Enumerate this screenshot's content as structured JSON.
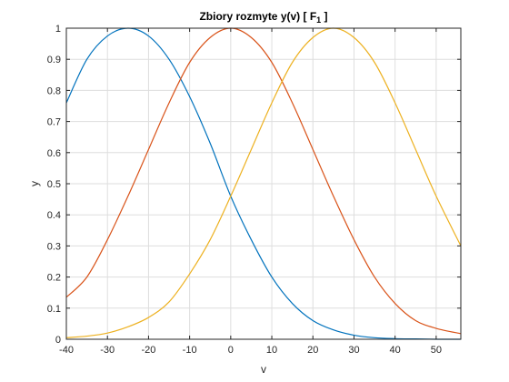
{
  "chart_data": {
    "type": "line",
    "title_main": "Zbiory  rozmyte  y(v)  [ F",
    "title_sub": "1",
    "title_end": " ]",
    "xlabel": "v",
    "ylabel": "y",
    "xlim": [
      -40,
      56
    ],
    "ylim": [
      0,
      1
    ],
    "x_ticks": [
      -40,
      -30,
      -20,
      -10,
      0,
      10,
      20,
      30,
      40,
      50
    ],
    "y_ticks": [
      0,
      0.1,
      0.2,
      0.3,
      0.4,
      0.5,
      0.6,
      0.7,
      0.8,
      0.9,
      1
    ],
    "x_tick_labels": [
      "-40",
      "-30",
      "-20",
      "-10",
      "0",
      "10",
      "20",
      "30",
      "40",
      "50"
    ],
    "y_tick_labels": [
      "0",
      "0.1",
      "0.2",
      "0.3",
      "0.4",
      "0.5",
      "0.6",
      "0.7",
      "0.8",
      "0.9",
      "1"
    ],
    "grid": true,
    "x": [
      -40,
      -35,
      -30,
      -25,
      -20,
      -15,
      -10,
      -5,
      0,
      5,
      10,
      15,
      20,
      25,
      30,
      35,
      40,
      45,
      50,
      56
    ],
    "series": [
      {
        "color": "#0072BD",
        "values": [
          0.76,
          0.9,
          0.975,
          1.0,
          0.975,
          0.9,
          0.78,
          0.63,
          0.46,
          0.32,
          0.2,
          0.115,
          0.06,
          0.03,
          0.013,
          0.005,
          0.002,
          0.001,
          0.0,
          0.0
        ]
      },
      {
        "color": "#D95319",
        "values": [
          0.135,
          0.2,
          0.32,
          0.46,
          0.61,
          0.76,
          0.89,
          0.97,
          1.0,
          0.97,
          0.89,
          0.76,
          0.61,
          0.46,
          0.32,
          0.2,
          0.115,
          0.06,
          0.035,
          0.018
        ]
      },
      {
        "color": "#EDB120",
        "values": [
          0.005,
          0.01,
          0.02,
          0.04,
          0.07,
          0.12,
          0.21,
          0.32,
          0.46,
          0.61,
          0.76,
          0.89,
          0.97,
          1.0,
          0.97,
          0.89,
          0.76,
          0.61,
          0.46,
          0.3
        ]
      }
    ]
  }
}
